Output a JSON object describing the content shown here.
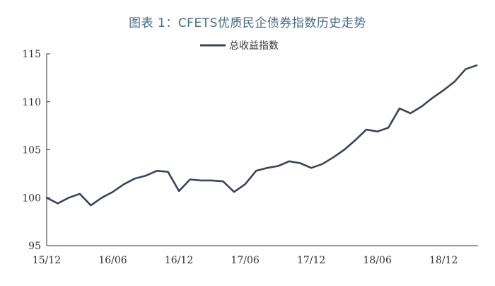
{
  "chart_data": {
    "type": "line",
    "title": "图表 1：CFETS优质民企债券指数历史走势",
    "xlabel": "",
    "ylabel": "",
    "ylim": [
      95,
      115
    ],
    "yticks": [
      "95",
      "100",
      "105",
      "110",
      "115"
    ],
    "xticks": [
      "15/12",
      "16/06",
      "16/12",
      "17/06",
      "17/12",
      "18/06",
      "18/12"
    ],
    "grid": false,
    "legend_position": "top",
    "color": "#3a4558",
    "series": [
      {
        "name": "总收益指数",
        "x": [
          "2015-12",
          "2016-01",
          "2016-02",
          "2016-03",
          "2016-04",
          "2016-05",
          "2016-06",
          "2016-07",
          "2016-08",
          "2016-09",
          "2016-10",
          "2016-11",
          "2016-12",
          "2017-01",
          "2017-02",
          "2017-03",
          "2017-04",
          "2017-05",
          "2017-06",
          "2017-07",
          "2017-08",
          "2017-09",
          "2017-10",
          "2017-11",
          "2017-12",
          "2018-01",
          "2018-02",
          "2018-03",
          "2018-04",
          "2018-05",
          "2018-06",
          "2018-07",
          "2018-08",
          "2018-09",
          "2018-10",
          "2018-11",
          "2018-12",
          "2019-01",
          "2019-02",
          "2019-03"
        ],
        "values": [
          100.0,
          99.4,
          100.0,
          100.4,
          99.2,
          100.0,
          100.6,
          101.4,
          102.0,
          102.3,
          102.8,
          102.7,
          100.7,
          101.9,
          101.8,
          101.8,
          101.7,
          100.6,
          101.4,
          102.8,
          103.1,
          103.3,
          103.8,
          103.6,
          103.1,
          103.5,
          104.2,
          105.0,
          106.0,
          107.1,
          106.9,
          107.3,
          109.3,
          108.8,
          109.5,
          110.4,
          111.2,
          112.1,
          113.4,
          113.8
        ]
      }
    ]
  }
}
